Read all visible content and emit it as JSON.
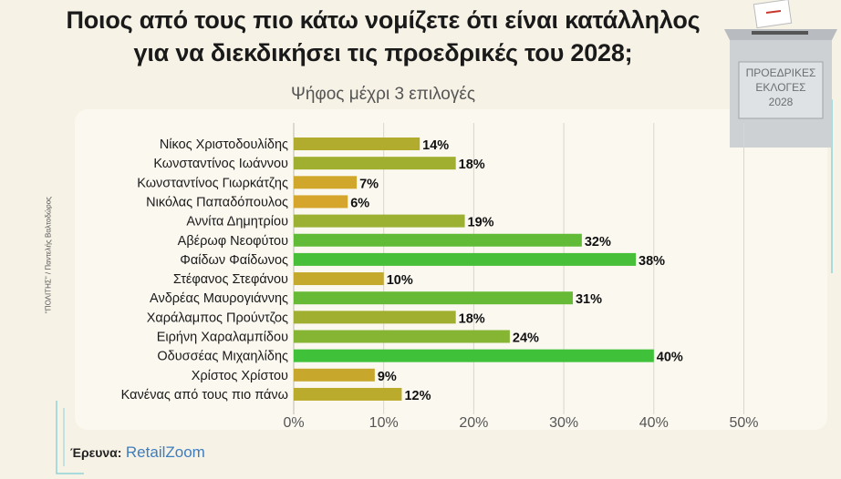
{
  "title_line1": "Ποιος από τους πιο κάτω νομίζετε ότι είναι κατάλληλος",
  "title_line2": "για να διεκδικήσει τις προεδρικές του 2028;",
  "subtitle": "Ψήφος μέχρι 3 επιλογές",
  "credit": "\"ΠΟΛΙΤΗΣ\" / Παντελής Βαλτοδώρος",
  "source_label": "Έρευνα:",
  "source_brand": "RetailZoom",
  "ballot_line1": "ΠΡΟΕΔΡΙΚΕΣ",
  "ballot_line2": "ΕΚΛΟΓΕΣ",
  "ballot_line3": "2028",
  "colors": {
    "low": "#f0a128",
    "high": "#3fc13a",
    "bg": "#f6f2e6",
    "panel": "#fbf8f0"
  },
  "chart_data": {
    "type": "bar",
    "orientation": "horizontal",
    "categories": [
      "Νίκος Χριστοδουλίδης",
      "Κωνσταντίνος Ιωάννου",
      "Κωνσταντίνος Γιωρκάτζης",
      "Νικόλας Παπαδόπουλος",
      "Αννίτα Δημητρίου",
      "Αβέρωφ Νεοφύτου",
      "Φαίδων Φαίδωνος",
      "Στέφανος Στεφάνου",
      "Ανδρέας Μαυρογιάννης",
      "Χαράλαμπος Προύντζος",
      "Ειρήνη Χαραλαμπίδου",
      "Οδυσσέας Μιχαηλίδης",
      "Χρίστος Χρίστου",
      "Κανένας από τους πιο πάνω"
    ],
    "values": [
      14,
      18,
      7,
      6,
      19,
      32,
      38,
      10,
      31,
      18,
      24,
      40,
      9,
      12
    ],
    "value_labels": [
      "14%",
      "18%",
      "7%",
      "6%",
      "19%",
      "32%",
      "38%",
      "10%",
      "31%",
      "18%",
      "24%",
      "40%",
      "9%",
      "12%"
    ],
    "xlim": [
      0,
      50
    ],
    "xticks": [
      0,
      10,
      20,
      30,
      40,
      50
    ],
    "xtick_labels": [
      "0%",
      "10%",
      "20%",
      "30%",
      "40%",
      "50%"
    ],
    "grid": true
  }
}
